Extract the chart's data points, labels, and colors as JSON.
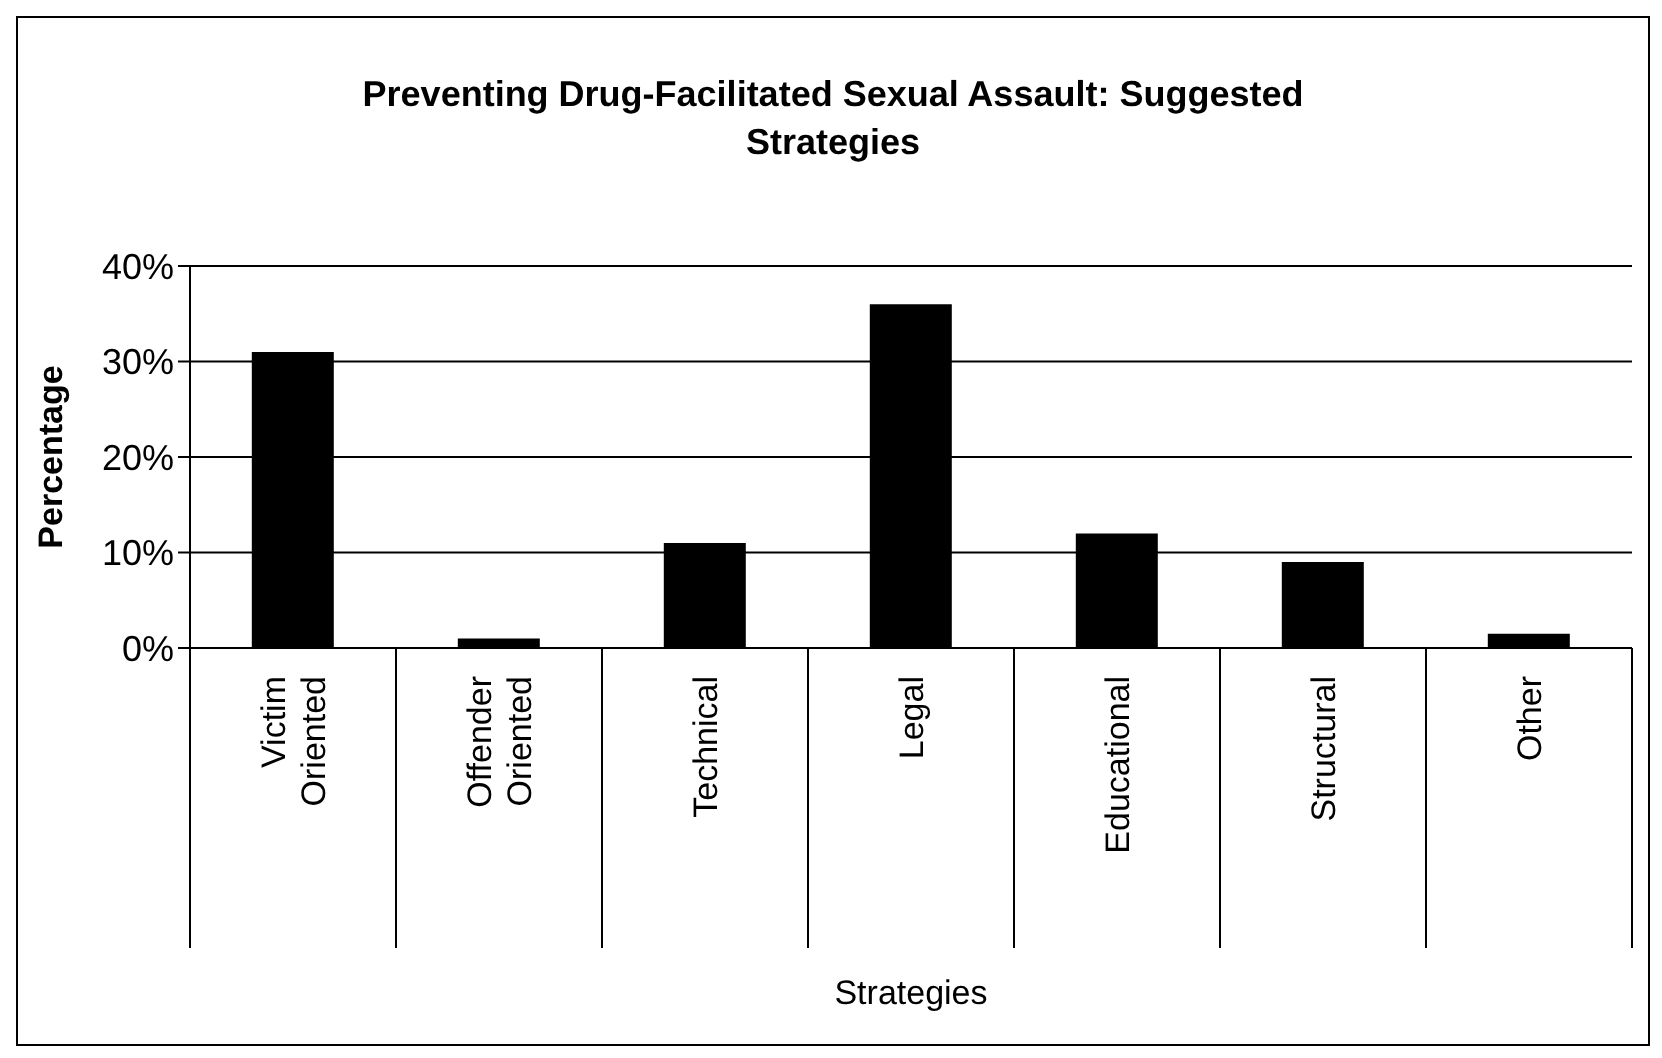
{
  "chart_data": {
    "type": "bar",
    "title": "Preventing Drug-Facilitated Sexual Assault: Suggested Strategies",
    "xlabel": "Strategies",
    "ylabel": "Percentage",
    "categories": [
      "Victim Oriented",
      "Offender Oriented",
      "Technical",
      "Legal",
      "Educational",
      "Structural",
      "Other"
    ],
    "values": [
      31,
      1,
      11,
      36,
      12,
      9,
      1.5
    ],
    "color": "#000000",
    "ylim": [
      0,
      40
    ],
    "yticks": [
      {
        "value": 0,
        "label": "0%"
      },
      {
        "value": 10,
        "label": "10%"
      },
      {
        "value": 20,
        "label": "20%"
      },
      {
        "value": 30,
        "label": "30%"
      },
      {
        "value": 40,
        "label": "40%"
      }
    ],
    "grid": "y",
    "legend": false
  }
}
